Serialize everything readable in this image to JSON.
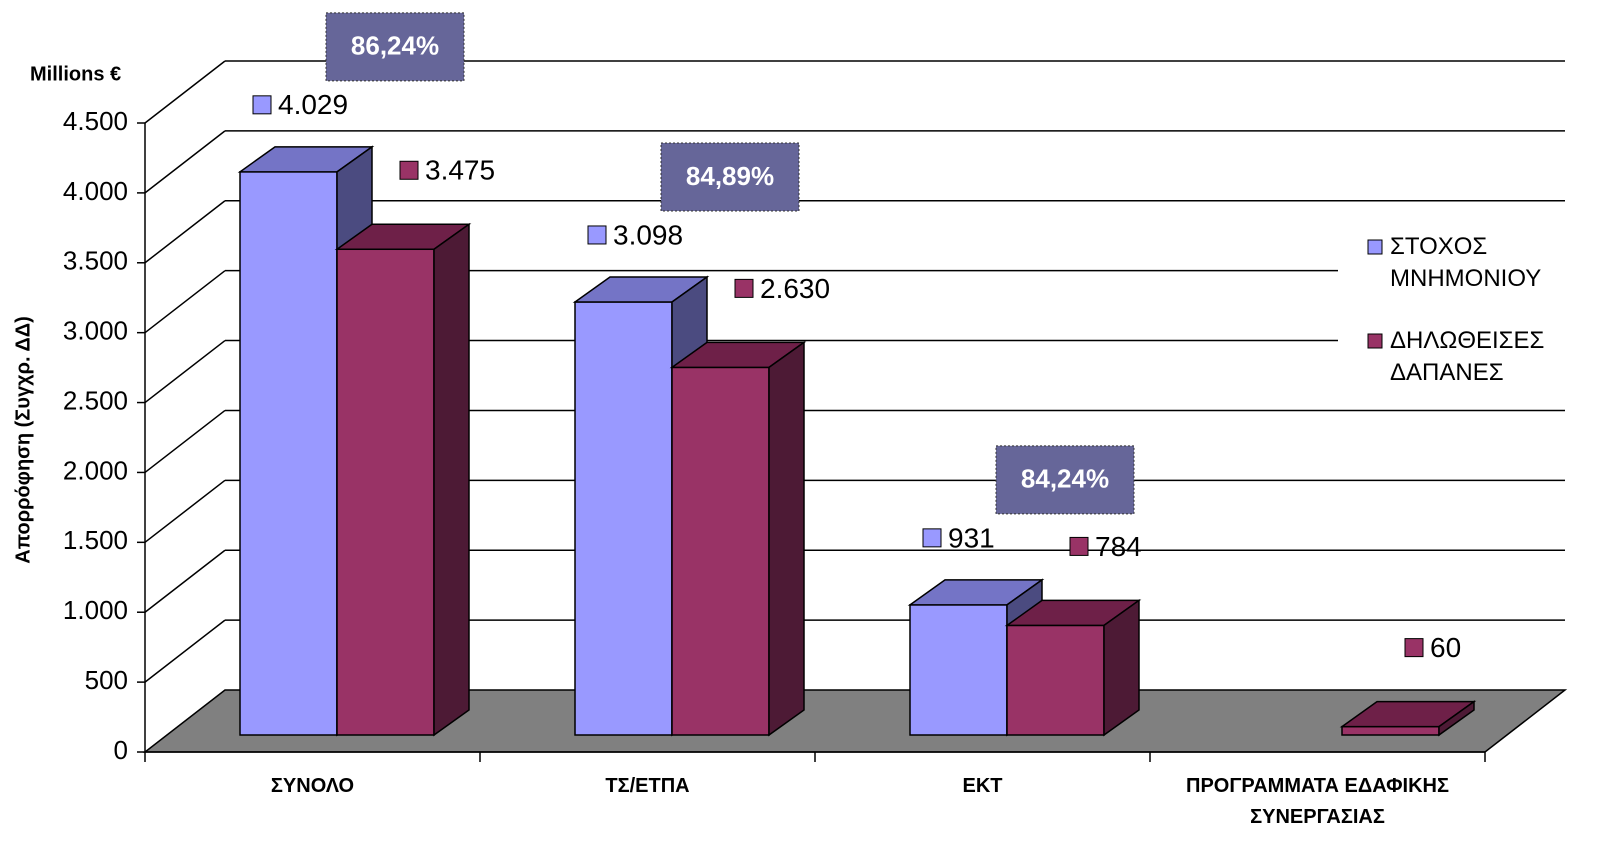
{
  "chart_data": {
    "type": "bar3d",
    "y_units": "Millions €",
    "y_label": "Απορρόφηση (Συγχρ. ΔΔ)",
    "categories": [
      "ΣΥΝΟΛΟ",
      "ΤΣ/ΕΤΠΑ",
      "ΕΚΤ",
      "ΠΡΟΓΡΑΜΜΑΤΑ ΕΔΑΦΙΚΗΣ ΣΥΝΕΡΓΑΣΙΑΣ"
    ],
    "series": [
      {
        "name": "ΣΤΟΧΟΣ ΜΝΗΜΟΝΙΟΥ",
        "color": "#9999ff",
        "top_color": "#7474c6",
        "side_color": "#4b4b80",
        "values": [
          4029,
          3098,
          931,
          null
        ],
        "value_labels": [
          "4.029",
          "3.098",
          "931",
          null
        ]
      },
      {
        "name": "ΔΗΛΩΘΕΙΣΕΣ ΔΑΠΑΝΕΣ",
        "color": "#993366",
        "top_color": "#6e2048",
        "side_color": "#4d1a35",
        "values": [
          3475,
          2630,
          784,
          60
        ],
        "value_labels": [
          "3.475",
          "2.630",
          "784",
          "60"
        ]
      }
    ],
    "annotations": [
      "86,24%",
      "84,89%",
      "84,24%"
    ],
    "ylim": [
      0,
      4500
    ],
    "yticks": [
      0,
      500,
      {
        "value": 1000,
        "label": "1.000"
      },
      {
        "value": 1500,
        "label": "1.500"
      },
      {
        "value": 2000,
        "label": "2.000"
      },
      {
        "value": 2500,
        "label": "2.500"
      },
      {
        "value": 3000,
        "label": "3.000"
      },
      {
        "value": 3500,
        "label": "3.500"
      },
      {
        "value": 4000,
        "label": "4.000"
      },
      {
        "value": 4500,
        "label": "4.500"
      }
    ],
    "grid": true,
    "legend": "right",
    "floor_color": "#808080",
    "annotation_color": "#666699"
  }
}
